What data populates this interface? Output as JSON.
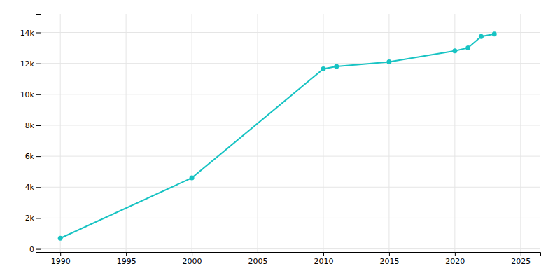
{
  "chart_data": {
    "type": "line",
    "x": [
      1990,
      2000,
      2010,
      2011,
      2015,
      2020,
      2021,
      2022,
      2023
    ],
    "values": [
      694,
      4600,
      11644,
      11800,
      12102,
      12808,
      13006,
      13738,
      13901
    ],
    "color": "#17C3C3",
    "marker": "circle",
    "xlim": [
      1988.5,
      2026.5
    ],
    "ylim": [
      -200,
      15200
    ],
    "xticks": [
      1990,
      1995,
      2000,
      2005,
      2010,
      2015,
      2020,
      2025
    ],
    "yticks": [
      0,
      {
        "value": 2000,
        "label": "2k"
      },
      {
        "value": 4000,
        "label": "4k"
      },
      {
        "value": 6000,
        "label": "6k"
      },
      {
        "value": 8000,
        "label": "8k"
      },
      {
        "value": 10000,
        "label": "10k"
      },
      {
        "value": 12000,
        "label": "12k"
      },
      {
        "value": 14000,
        "label": "14k"
      }
    ],
    "grid": true
  }
}
